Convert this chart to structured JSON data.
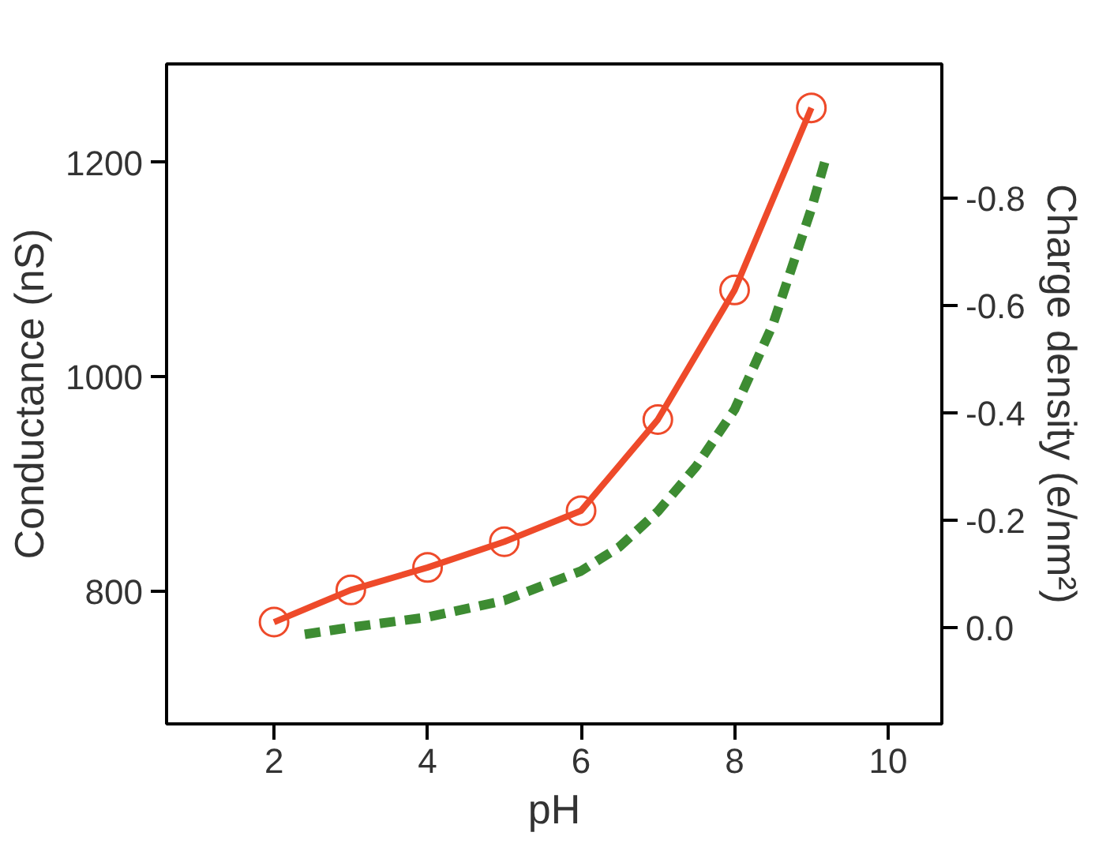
{
  "chart_data": {
    "type": "line",
    "xlabel": "pH",
    "ylabel": "Conductance (nS)",
    "y2label": "Charge density (e/nm²)",
    "xlim": [
      0.6,
      10.7
    ],
    "xticks": [
      2,
      4,
      6,
      8,
      10
    ],
    "ylim": [
      676,
      1292
    ],
    "yticks": [
      800,
      1000,
      1200
    ],
    "y2lim": [
      0.18,
      -1.05
    ],
    "y2ticks": [
      {
        "value": 0,
        "label": "0.0"
      },
      {
        "value": -0.2,
        "label": "-0.2"
      },
      {
        "value": -0.4,
        "label": "-0.4"
      },
      {
        "value": -0.6,
        "label": "-0.6"
      },
      {
        "value": -0.8,
        "label": "-0.8"
      }
    ],
    "grid": false,
    "series": [
      {
        "color": "#ee4a2a",
        "marker": "circle",
        "line_style": "solid",
        "x": [
          2,
          3,
          4,
          5,
          6,
          7,
          8,
          9
        ],
        "values": [
          771,
          801,
          822,
          846,
          875,
          960,
          1081,
          1251
        ]
      },
      {
        "color": "#3d8c32",
        "marker": "none",
        "line_style": "dashed",
        "axis": "y2",
        "x": [
          2.4,
          3,
          4,
          5,
          6,
          6.5,
          7,
          7.5,
          8,
          8.5,
          9,
          9.2
        ],
        "values": [
          0.013,
          0.0,
          -0.019,
          -0.05,
          -0.105,
          -0.15,
          -0.216,
          -0.3,
          -0.406,
          -0.565,
          -0.78,
          -0.88
        ]
      }
    ]
  }
}
